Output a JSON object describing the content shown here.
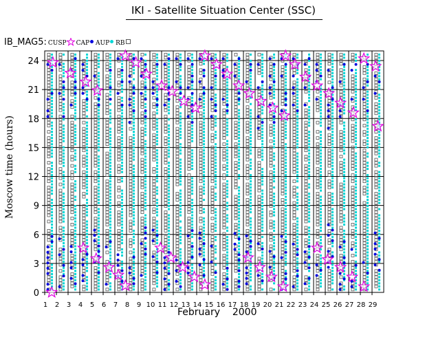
{
  "chart_data": {
    "type": "scatter",
    "title": "IKI - Satellite Situation Center (SSC)",
    "satellite": "IB_MAG5:",
    "legend": [
      {
        "label": "CUSP",
        "symbol": "star",
        "color": "#e000e0"
      },
      {
        "label": "CAP",
        "symbol": "dot",
        "color": "#0000dd"
      },
      {
        "label": "AUP",
        "symbol": "dot",
        "color": "#00d6d6"
      },
      {
        "label": "RB",
        "symbol": "square",
        "color": "#555555"
      }
    ],
    "ylabel": "Moscow time (hours)",
    "xlabel_month": "February",
    "xlabel_year": "2000",
    "ylim": [
      0,
      25
    ],
    "yticks": [
      0,
      3,
      6,
      9,
      12,
      15,
      18,
      21,
      24
    ],
    "xlim": [
      1,
      30
    ],
    "xticks": [
      1,
      2,
      3,
      4,
      5,
      6,
      7,
      8,
      9,
      10,
      11,
      12,
      13,
      14,
      15,
      16,
      17,
      18,
      19,
      20,
      21,
      22,
      23,
      24,
      25,
      26,
      27,
      28,
      29
    ],
    "grid": true,
    "cusp_events": [
      {
        "day": 1.6,
        "hour": 0.0
      },
      {
        "day": 1.7,
        "hour": 23.8
      },
      {
        "day": 3.2,
        "hour": 22.7
      },
      {
        "day": 4.3,
        "hour": 4.6
      },
      {
        "day": 4.5,
        "hour": 21.8
      },
      {
        "day": 5.4,
        "hour": 3.5
      },
      {
        "day": 5.5,
        "hour": 20.9
      },
      {
        "day": 6.5,
        "hour": 2.6
      },
      {
        "day": 7.3,
        "hour": 1.8
      },
      {
        "day": 7.9,
        "hour": 0.7
      },
      {
        "day": 7.9,
        "hour": 24.5
      },
      {
        "day": 8.8,
        "hour": 23.8
      },
      {
        "day": 9.7,
        "hour": 22.6
      },
      {
        "day": 10.9,
        "hour": 4.6
      },
      {
        "day": 11.0,
        "hour": 21.4
      },
      {
        "day": 11.8,
        "hour": 3.6
      },
      {
        "day": 11.9,
        "hour": 20.8
      },
      {
        "day": 12.8,
        "hour": 2.6
      },
      {
        "day": 12.9,
        "hour": 19.8
      },
      {
        "day": 13.8,
        "hour": 1.6
      },
      {
        "day": 13.9,
        "hour": 19.1
      },
      {
        "day": 14.7,
        "hour": 0.8
      },
      {
        "day": 14.7,
        "hour": 24.5
      },
      {
        "day": 15.7,
        "hour": 23.6
      },
      {
        "day": 16.6,
        "hour": 22.6
      },
      {
        "day": 17.6,
        "hour": 21.4
      },
      {
        "day": 18.4,
        "hour": 3.6
      },
      {
        "day": 18.5,
        "hour": 20.6
      },
      {
        "day": 19.4,
        "hour": 2.6
      },
      {
        "day": 19.5,
        "hour": 19.8
      },
      {
        "day": 20.4,
        "hour": 1.6
      },
      {
        "day": 20.5,
        "hour": 19.1
      },
      {
        "day": 21.4,
        "hour": 0.6
      },
      {
        "day": 21.5,
        "hour": 18.3
      },
      {
        "day": 21.6,
        "hour": 24.5
      },
      {
        "day": 22.4,
        "hour": 23.6
      },
      {
        "day": 23.3,
        "hour": 22.3
      },
      {
        "day": 24.3,
        "hour": 4.6
      },
      {
        "day": 24.3,
        "hour": 21.4
      },
      {
        "day": 25.2,
        "hour": 3.4
      },
      {
        "day": 25.3,
        "hour": 20.6
      },
      {
        "day": 26.3,
        "hour": 2.6
      },
      {
        "day": 26.3,
        "hour": 19.6
      },
      {
        "day": 27.3,
        "hour": 1.6
      },
      {
        "day": 27.4,
        "hour": 18.6
      },
      {
        "day": 28.3,
        "hour": 0.6
      },
      {
        "day": 28.3,
        "hour": 24.2
      },
      {
        "day": 29.3,
        "hour": 23.4
      },
      {
        "day": 29.5,
        "hour": 17.2
      }
    ]
  }
}
